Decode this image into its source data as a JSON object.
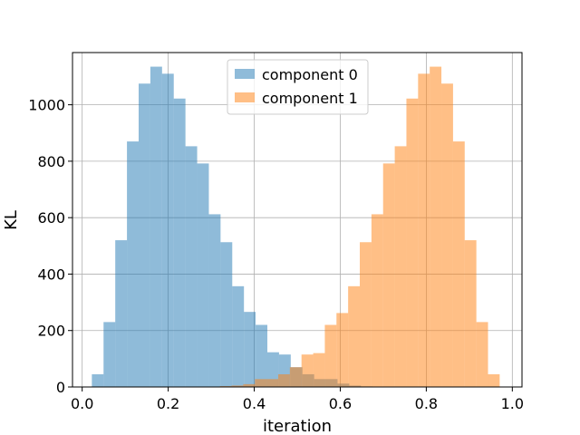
{
  "chart_data": {
    "type": "bar",
    "subtype": "histogram",
    "title": "",
    "xlabel": "iteration",
    "ylabel": "KL",
    "xlim": [
      -0.0225,
      1.0225
    ],
    "ylim": [
      0,
      1185
    ],
    "xticks": [
      "0.0",
      "0.2",
      "0.4",
      "0.6",
      "0.8",
      "1.0"
    ],
    "yticks": [
      "0",
      "200",
      "400",
      "600",
      "800",
      "1000"
    ],
    "grid": true,
    "legend": {
      "position": "top-center"
    },
    "colors": {
      "component_0": "#1f77b4",
      "component_1": "#ff7f0e"
    },
    "alpha": 0.5,
    "series": [
      {
        "name": "component 0",
        "bin_edges": [
          0.0225,
          0.0497,
          0.0769,
          0.1041,
          0.1313,
          0.1585,
          0.1857,
          0.2129,
          0.2401,
          0.2673,
          0.2945,
          0.3217,
          0.3489,
          0.3761,
          0.4033,
          0.4305,
          0.4577,
          0.4849,
          0.5121,
          0.5393,
          0.5665,
          0.5937,
          0.6209,
          0.6481,
          0.6753,
          0.7025
        ],
        "counts": [
          45,
          230,
          520,
          870,
          1075,
          1135,
          1110,
          1022,
          853,
          792,
          612,
          513,
          357,
          266,
          220,
          123,
          115,
          70,
          45,
          28,
          28,
          12,
          5,
          2,
          1
        ]
      },
      {
        "name": "component 1",
        "bin_edges": [
          0.2931,
          0.3202,
          0.3473,
          0.3744,
          0.4015,
          0.4286,
          0.4557,
          0.4828,
          0.5099,
          0.537,
          0.5641,
          0.5912,
          0.6183,
          0.6454,
          0.6725,
          0.6996,
          0.7267,
          0.7538,
          0.7809,
          0.808,
          0.8351,
          0.8622,
          0.8893,
          0.9164,
          0.9435,
          0.9706
        ],
        "counts": [
          1,
          3,
          5,
          10,
          28,
          28,
          45,
          70,
          115,
          120,
          220,
          262,
          357,
          513,
          612,
          792,
          853,
          1022,
          1110,
          1135,
          1075,
          870,
          520,
          230,
          45
        ]
      }
    ]
  }
}
